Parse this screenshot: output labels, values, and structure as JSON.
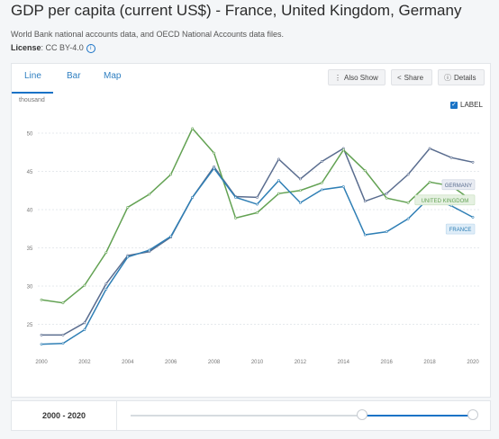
{
  "header": {
    "title": "GDP per capita (current US$) - France, United Kingdom, Germany",
    "source": "World Bank national accounts data, and OECD National Accounts data files.",
    "license_label": "License",
    "license_value": ": CC BY-4.0"
  },
  "tabs": [
    {
      "label": "Line"
    },
    {
      "label": "Bar"
    },
    {
      "label": "Map"
    }
  ],
  "actions": {
    "also_show": "Also Show",
    "share": "Share",
    "details": "Details"
  },
  "label_toggle": {
    "label": "LABEL",
    "checked": true
  },
  "range": {
    "label": "2000 - 2020",
    "start": 2000,
    "end": 2020
  },
  "colors": {
    "accent": "#1a73c6",
    "germany": "#5a6d8f",
    "uk": "#63a253",
    "france": "#2f7fb5"
  },
  "chart_data": {
    "type": "line",
    "ylabel": "thousand",
    "ylim": [
      22,
      52
    ],
    "yticks": [
      "50",
      "45",
      "40",
      "35",
      "30",
      "25"
    ],
    "xticks": [
      "2000",
      "2002",
      "2004",
      "2006",
      "2008",
      "2010",
      "2012",
      "2014",
      "2016",
      "2018",
      "2020"
    ],
    "grid": true,
    "x": [
      2000,
      2001,
      2002,
      2003,
      2004,
      2005,
      2006,
      2007,
      2008,
      2009,
      2010,
      2011,
      2012,
      2013,
      2014,
      2015,
      2016,
      2017,
      2018,
      2019,
      2020
    ],
    "series": [
      {
        "name": "GERMANY",
        "color": "#5a6d8f",
        "values": [
          23.6,
          23.6,
          25.2,
          30.3,
          34.0,
          34.5,
          36.4,
          41.6,
          45.6,
          41.7,
          41.6,
          46.6,
          44.0,
          46.3,
          48.0,
          41.1,
          42.1,
          44.6,
          48.0,
          46.8,
          46.2
        ]
      },
      {
        "name": "UNITED KINGDOM",
        "color": "#63a253",
        "values": [
          28.2,
          27.8,
          30.1,
          34.4,
          40.3,
          42.0,
          44.6,
          50.6,
          47.4,
          38.9,
          39.6,
          42.1,
          42.5,
          43.5,
          47.8,
          45.1,
          41.5,
          40.9,
          43.6,
          43.1,
          41.1
        ]
      },
      {
        "name": "FRANCE",
        "color": "#2f7fb5",
        "values": [
          22.4,
          22.5,
          24.3,
          29.6,
          33.8,
          34.7,
          36.5,
          41.6,
          45.4,
          41.6,
          40.7,
          43.8,
          40.9,
          42.6,
          43.0,
          36.7,
          37.1,
          38.8,
          41.6,
          40.5,
          39.0
        ]
      }
    ]
  }
}
